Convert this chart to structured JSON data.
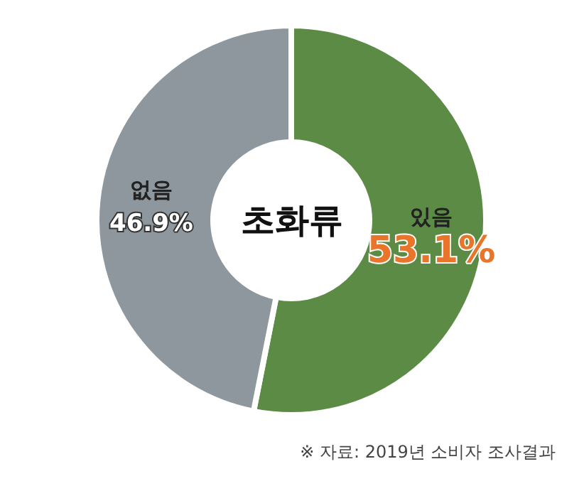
{
  "chart_data": {
    "type": "donut",
    "title": "초화류",
    "categories": [
      "있음",
      "없음"
    ],
    "values": [
      53.1,
      46.9
    ],
    "colors": [
      "#5b8b45",
      "#8d979d"
    ],
    "value_labels": [
      "53.1%",
      "46.9%"
    ],
    "annotations": [
      "※ 자료: 2019년 소비자 조사결과"
    ],
    "legend": false
  }
}
